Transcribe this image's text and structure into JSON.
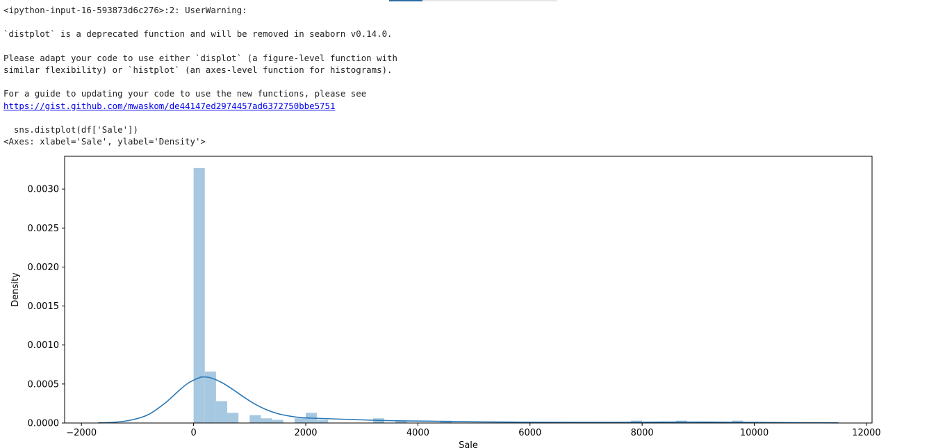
{
  "warning": {
    "header": "<ipython-input-16-593873d6c276>:2: UserWarning:",
    "deprecation": "`distplot` is a deprecated function and will be removed in seaborn v0.14.0.",
    "adapt_line1": "Please adapt your code to use either `displot` (a figure-level function with",
    "adapt_line2": "similar flexibility) or `histplot` (an axes-level function for histograms).",
    "guide": "For a guide to updating your code to use the new functions, please see",
    "link": "https://gist.github.com/mwaskom/de44147ed2974457ad6372750bbe5751",
    "code": "  sns.distplot(df['Sale'])",
    "result": "<Axes: xlabel='Sale', ylabel='Density'>"
  },
  "colors": {
    "bar": "#a6c8e0",
    "line": "#2a77b4",
    "axis": "#000000",
    "link": "#0000ee"
  },
  "chart_data": {
    "type": "bar",
    "xlabel": "Sale",
    "ylabel": "Density",
    "xlim": [
      -2300,
      12100
    ],
    "ylim": [
      0,
      0.00342
    ],
    "xticks": [
      -2000,
      0,
      2000,
      4000,
      6000,
      8000,
      10000,
      12000
    ],
    "yticks": [
      0.0,
      0.0005,
      0.001,
      0.0015,
      0.002,
      0.0025,
      0.003
    ],
    "ytick_labels": [
      "0.0000",
      "0.0005",
      "0.0010",
      "0.0015",
      "0.0020",
      "0.0025",
      "0.0030"
    ],
    "grid": false,
    "bin_width": 200,
    "histogram": {
      "bin_starts": [
        0,
        200,
        400,
        600,
        1000,
        1200,
        1400,
        1800,
        2000,
        2200,
        3200,
        3600,
        4400,
        7800,
        8600,
        9600
      ],
      "densities": [
        0.00327,
        0.00066,
        0.00028,
        0.00013,
        0.0001,
        6e-05,
        4e-05,
        6e-05,
        0.00013,
        4e-05,
        6e-05,
        3e-05,
        3e-05,
        3e-05,
        3e-05,
        3e-05
      ]
    },
    "kde": {
      "x": [
        -1700,
        -1400,
        -1100,
        -800,
        -500,
        -300,
        -100,
        100,
        170,
        300,
        500,
        700,
        900,
        1100,
        1300,
        1500,
        1700,
        1900,
        2200,
        2600,
        3000,
        3500,
        4000,
        4500,
        5000,
        6000,
        7000,
        8000,
        8500,
        9000,
        9500,
        10000,
        10500,
        11000,
        11500
      ],
      "y": [
        2e-06,
        1e-05,
        4e-05,
        0.00011,
        0.00026,
        0.00039,
        0.00051,
        0.00058,
        0.00059,
        0.00058,
        0.00052,
        0.00043,
        0.00033,
        0.00024,
        0.00017,
        0.00012,
        9e-05,
        7e-05,
        6e-05,
        5e-05,
        4e-05,
        3e-05,
        2.5e-05,
        2e-05,
        1.5e-05,
        1e-05,
        8e-06,
        1e-05,
        1.2e-05,
        1.2e-05,
        1e-05,
        8e-06,
        5e-06,
        3e-06,
        2e-06
      ]
    }
  }
}
